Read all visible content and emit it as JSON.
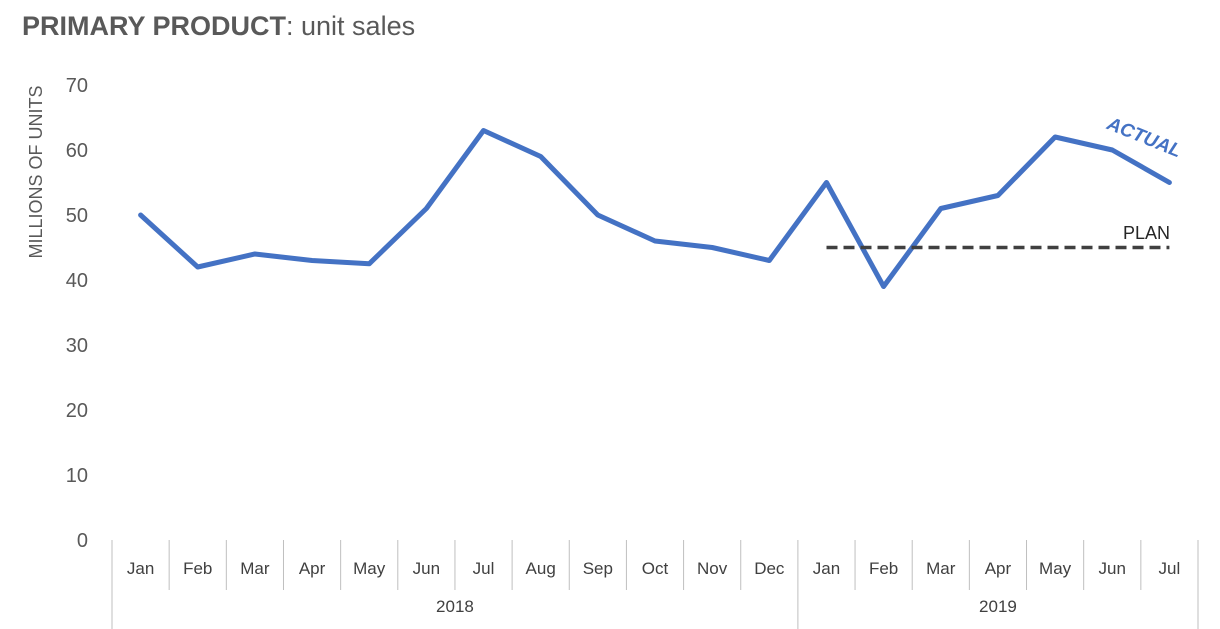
{
  "title": {
    "bold": "PRIMARY PRODUCT",
    "rest": ": unit sales"
  },
  "chart_data": {
    "type": "line",
    "title": "PRIMARY PRODUCT: unit sales",
    "xlabel": "",
    "ylabel": "MILLIONS OF UNITS",
    "ylim": [
      0,
      70
    ],
    "yticks": [
      0,
      10,
      20,
      30,
      40,
      50,
      60,
      70
    ],
    "grid": false,
    "categories": [
      "Jan",
      "Feb",
      "Mar",
      "Apr",
      "May",
      "Jun",
      "Jul",
      "Aug",
      "Sep",
      "Oct",
      "Nov",
      "Dec",
      "Jan",
      "Feb",
      "Mar",
      "Apr",
      "May",
      "Jun",
      "Jul"
    ],
    "groups": [
      {
        "label": "2018",
        "count": 12
      },
      {
        "label": "2019",
        "count": 7
      }
    ],
    "series": [
      {
        "name": "ACTUAL",
        "color": "#4472C4",
        "style": "solid",
        "values": [
          50,
          42,
          44,
          43,
          42.5,
          51,
          63,
          59,
          50,
          46,
          45,
          43,
          55,
          39,
          51,
          53,
          62,
          60,
          55
        ]
      },
      {
        "name": "PLAN",
        "color": "#404040",
        "style": "dashed",
        "values": [
          null,
          null,
          null,
          null,
          null,
          null,
          null,
          null,
          null,
          null,
          null,
          null,
          45,
          45,
          45,
          45,
          45,
          45,
          45
        ]
      }
    ]
  }
}
